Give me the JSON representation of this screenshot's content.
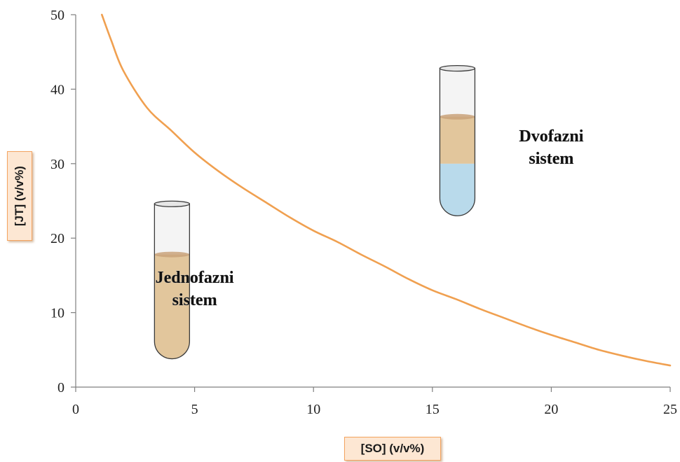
{
  "chart_data": {
    "type": "line",
    "xlabel": "[SO] (v/v%)",
    "ylabel": "[JT] (v/v%)",
    "xlim": [
      0,
      25
    ],
    "ylim": [
      0,
      50
    ],
    "x_ticks": [
      0,
      5,
      10,
      15,
      20,
      25
    ],
    "y_ticks": [
      0,
      10,
      20,
      30,
      40,
      50
    ],
    "grid": false,
    "legend": "none",
    "series": [
      {
        "color": "#f0a050",
        "x": [
          1.1,
          1.5,
          2,
          3,
          4,
          5,
          6,
          7,
          8,
          9,
          10,
          11,
          12,
          13,
          14,
          15,
          16,
          17,
          18,
          19,
          20,
          21,
          22,
          23,
          24,
          25
        ],
        "y": [
          50,
          46.5,
          42.5,
          37.5,
          34.5,
          31.5,
          29,
          26.8,
          24.8,
          22.8,
          21,
          19.5,
          17.8,
          16.2,
          14.5,
          13,
          11.8,
          10.5,
          9.3,
          8.1,
          7,
          6,
          5,
          4.2,
          3.5,
          2.9
        ]
      }
    ],
    "annotations": [
      {
        "id": "single",
        "text_lines": [
          "Jednofazni",
          "sistem"
        ],
        "x": 5,
        "y": 14
      },
      {
        "id": "double",
        "text_lines": [
          "Dvofazni",
          "sistem"
        ],
        "x": 20,
        "y": 33
      }
    ],
    "tubes": [
      {
        "id": "single-phase",
        "x": 4.05,
        "y_top": 24.6,
        "y_bottom": 3.8,
        "layers": [
          {
            "color": "#e2c69c",
            "from": 3.8,
            "to": 17.8
          }
        ]
      },
      {
        "id": "two-phase",
        "x": 16.05,
        "y_top": 42.8,
        "y_bottom": 23,
        "layers": [
          {
            "color": "#b9daeb",
            "from": 23,
            "to": 30
          },
          {
            "color": "#e2c69c",
            "from": 30,
            "to": 36.3
          }
        ]
      }
    ]
  }
}
